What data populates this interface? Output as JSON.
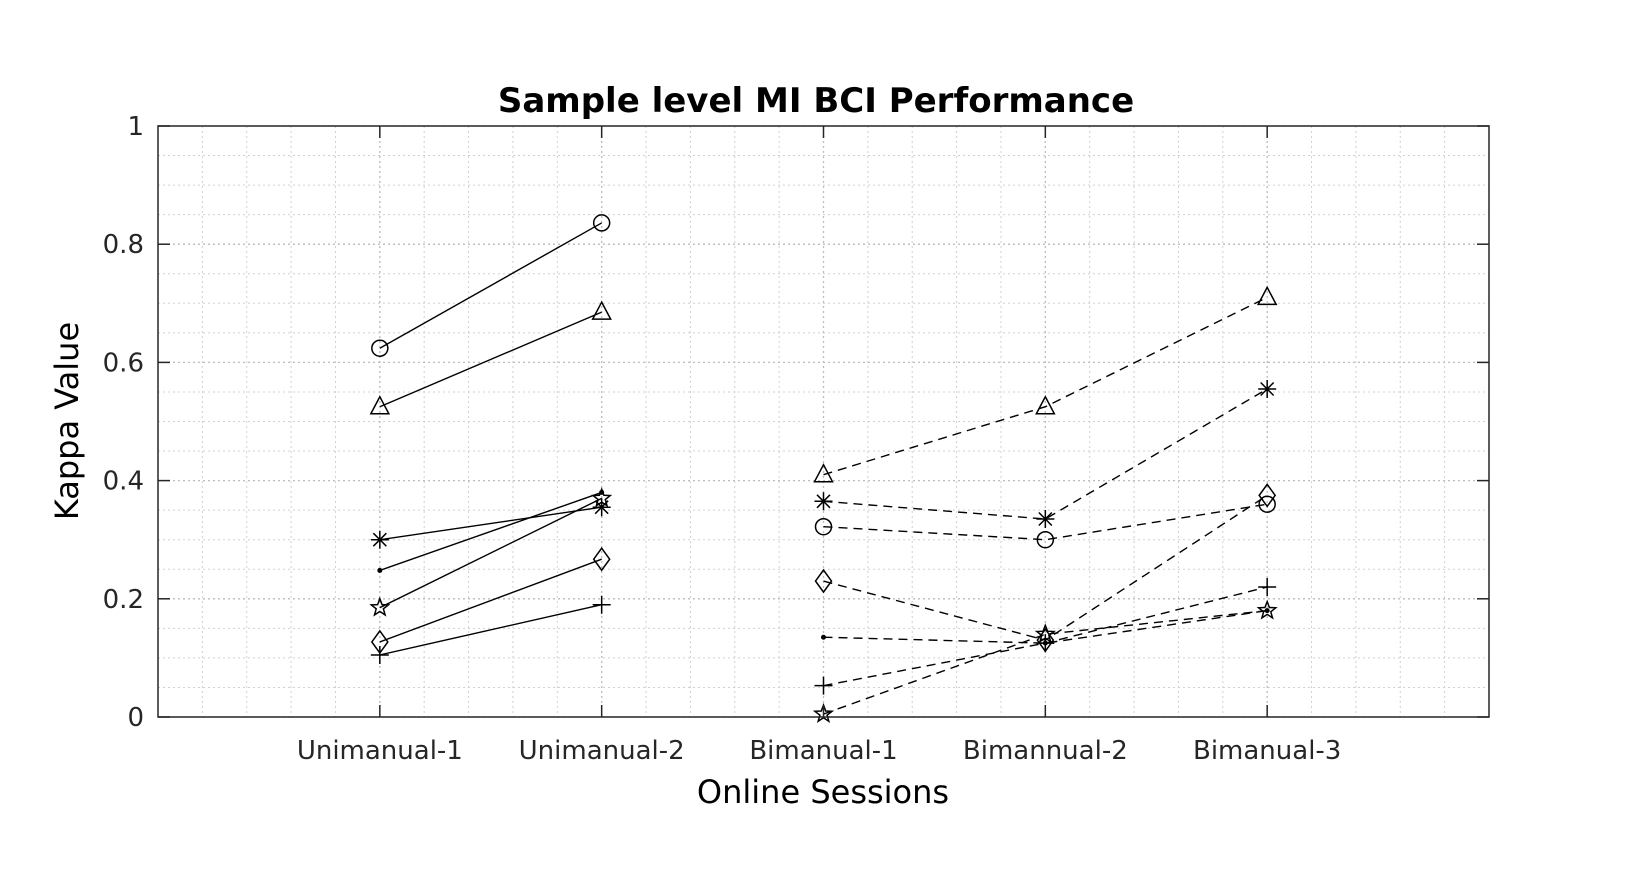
{
  "chart_data": {
    "type": "line",
    "title": "Sample level MI BCI Performance",
    "xlabel": "Online Sessions",
    "ylabel": "Kappa Value",
    "categories": [
      "Unimanual-1",
      "Unimanual-2",
      "Bimanual-1",
      "Bimannual-2",
      "Bimanual-3"
    ],
    "xlim": [
      0,
      6
    ],
    "ylim": [
      0,
      1
    ],
    "yticks": [
      "0",
      "0.2",
      "0.4",
      "0.6",
      "0.8",
      "1"
    ],
    "grid": "on (major + minor, dotted)",
    "legend": "none",
    "color": "#000000",
    "series": [
      {
        "marker": "circle",
        "line": "solid",
        "x": [
          1,
          2
        ],
        "values": [
          0.624,
          0.836
        ]
      },
      {
        "marker": "triangle",
        "line": "solid",
        "x": [
          1,
          2
        ],
        "values": [
          0.525,
          0.685
        ]
      },
      {
        "marker": "asterisk",
        "line": "solid",
        "x": [
          1,
          2
        ],
        "values": [
          0.3,
          0.355
        ]
      },
      {
        "marker": "dot",
        "line": "solid",
        "x": [
          1,
          2
        ],
        "values": [
          0.248,
          0.38
        ]
      },
      {
        "marker": "pentagram",
        "line": "solid",
        "x": [
          1,
          2
        ],
        "values": [
          0.185,
          0.37
        ]
      },
      {
        "marker": "diamond",
        "line": "solid",
        "x": [
          1,
          2
        ],
        "values": [
          0.127,
          0.267
        ]
      },
      {
        "marker": "plus",
        "line": "solid",
        "x": [
          1,
          2
        ],
        "values": [
          0.105,
          0.19
        ]
      },
      {
        "marker": "triangle",
        "line": "dashed",
        "x": [
          3,
          4,
          5
        ],
        "values": [
          0.41,
          0.525,
          0.71
        ]
      },
      {
        "marker": "asterisk",
        "line": "dashed",
        "x": [
          3,
          4,
          5
        ],
        "values": [
          0.365,
          0.335,
          0.555
        ]
      },
      {
        "marker": "circle",
        "line": "dashed",
        "x": [
          3,
          4,
          5
        ],
        "values": [
          0.322,
          0.3,
          0.36
        ]
      },
      {
        "marker": "diamond",
        "line": "dashed",
        "x": [
          3,
          4,
          5
        ],
        "values": [
          0.23,
          0.13,
          0.375
        ]
      },
      {
        "marker": "dot",
        "line": "dashed",
        "x": [
          3,
          4,
          5
        ],
        "values": [
          0.135,
          0.125,
          0.18
        ]
      },
      {
        "marker": "plus",
        "line": "dashed",
        "x": [
          3,
          4,
          5
        ],
        "values": [
          0.053,
          0.125,
          0.22
        ]
      },
      {
        "marker": "pentagram",
        "line": "dashed",
        "x": [
          3,
          4,
          5
        ],
        "values": [
          0.005,
          0.14,
          0.18
        ]
      }
    ]
  }
}
